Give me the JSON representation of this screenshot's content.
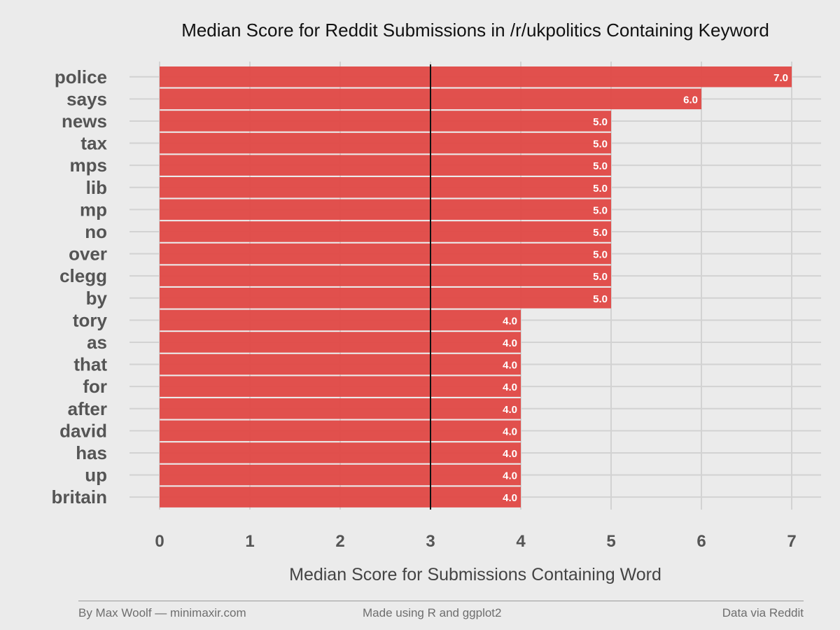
{
  "chart_data": {
    "type": "bar",
    "orientation": "horizontal",
    "title": "Median Score for Reddit Submissions in /r/ukpolitics Containing Keyword",
    "xlabel": "Median Score for Submissions Containing Word",
    "ylabel": "",
    "categories": [
      "police",
      "says",
      "news",
      "tax",
      "mps",
      "lib",
      "mp",
      "no",
      "over",
      "clegg",
      "by",
      "tory",
      "as",
      "that",
      "for",
      "after",
      "david",
      "has",
      "up",
      "britain"
    ],
    "values": [
      7.0,
      6.0,
      5.0,
      5.0,
      5.0,
      5.0,
      5.0,
      5.0,
      5.0,
      5.0,
      5.0,
      4.0,
      4.0,
      4.0,
      4.0,
      4.0,
      4.0,
      4.0,
      4.0,
      4.0
    ],
    "data_labels": [
      "7.0",
      "6.0",
      "5.0",
      "5.0",
      "5.0",
      "5.0",
      "5.0",
      "5.0",
      "5.0",
      "5.0",
      "5.0",
      "4.0",
      "4.0",
      "4.0",
      "4.0",
      "4.0",
      "4.0",
      "4.0",
      "4.0",
      "4.0"
    ],
    "xlim": [
      0,
      7
    ],
    "x_ticks": [
      "0",
      "1",
      "2",
      "3",
      "4",
      "5",
      "6",
      "7"
    ],
    "reference_line": 3,
    "grid": true,
    "colors": {
      "bar": "#e04844",
      "background": "#ebebeb",
      "grid": "#d2d2d2",
      "reference_line": "#111111",
      "text": "#555555",
      "bar_label": "#ffffff"
    }
  },
  "footer": {
    "left": "By Max Woolf — minimaxir.com",
    "center": "Made using R and ggplot2",
    "right": "Data via Reddit"
  }
}
